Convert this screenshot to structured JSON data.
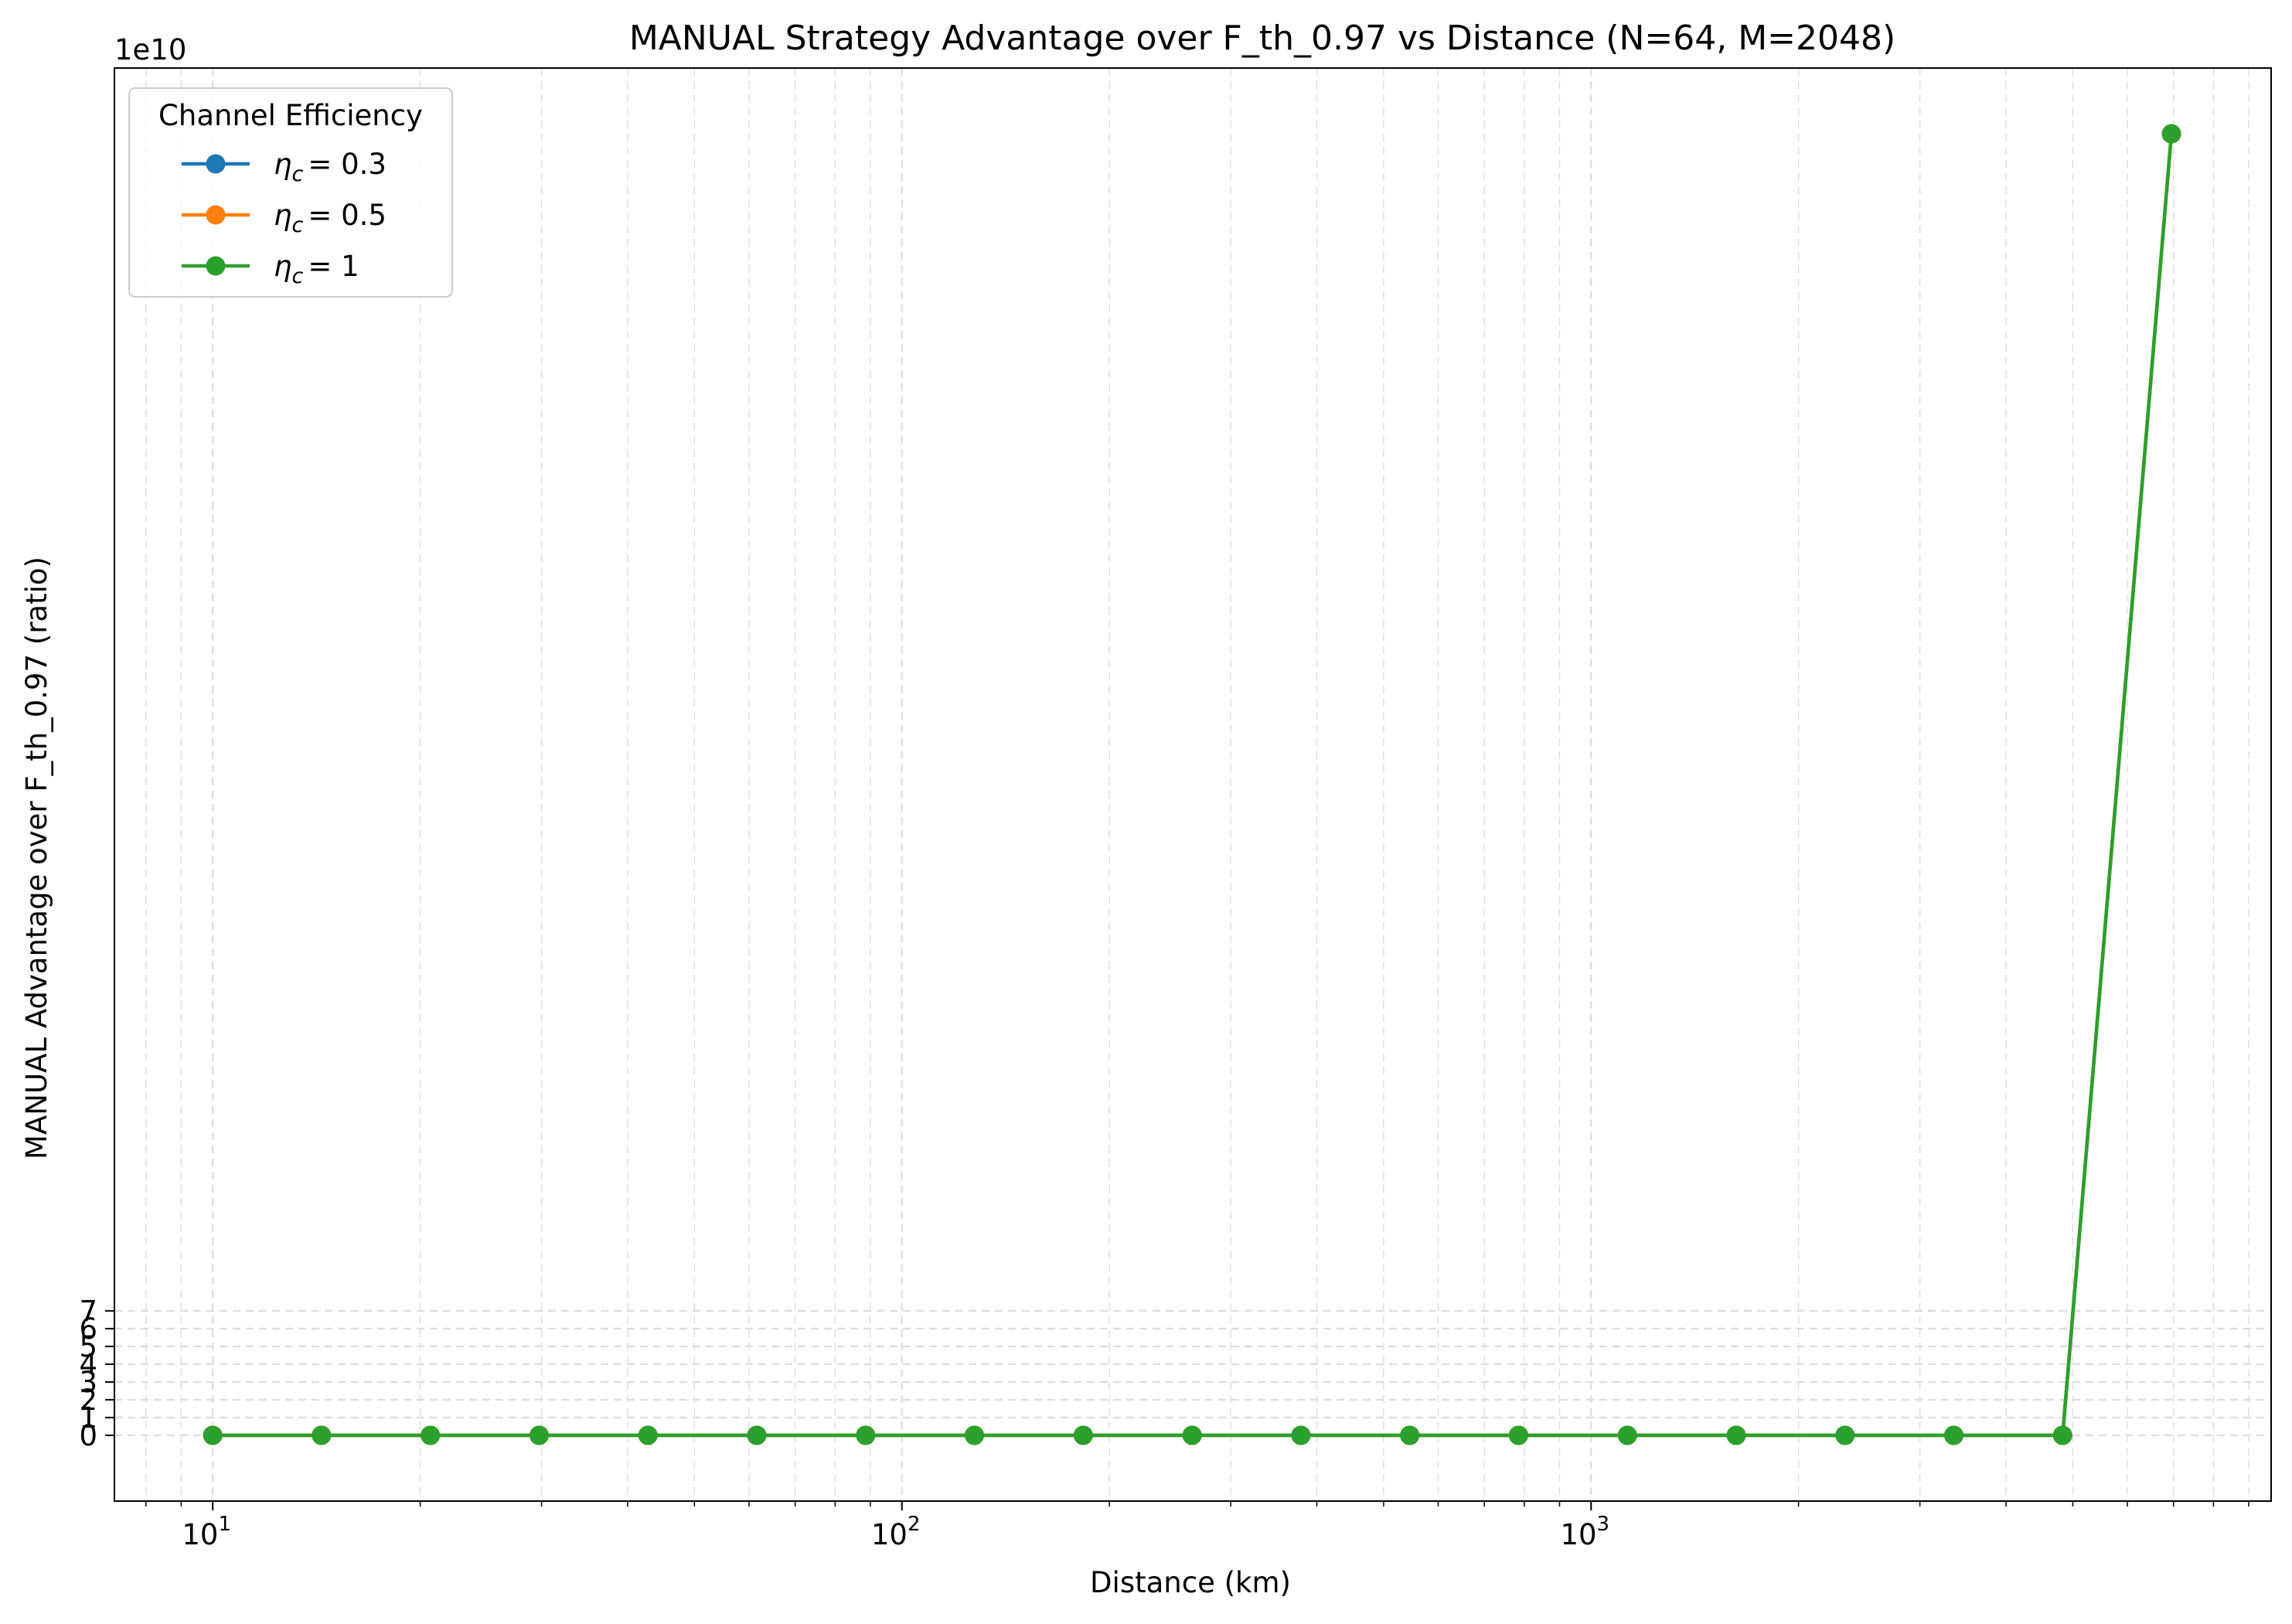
{
  "chart_data": {
    "type": "line",
    "title": "MANUAL Strategy Advantage over F_th_0.97 vs Distance (N=64, M=2048)",
    "xlabel": "Distance (km)",
    "ylabel": "MANUAL Advantage over F_th_0.97 (ratio)",
    "xscale": "log",
    "xlim": [
      7.2,
      9700
    ],
    "ylim": [
      -3.7,
      76.9
    ],
    "y_multiplier_label": "1e10",
    "y_unit_multiplier": 10000000000,
    "grid": true,
    "legend": {
      "title": "Channel Efficiency",
      "placement": "top-left"
    },
    "x_ticks": [
      {
        "value": 10,
        "base": "10",
        "exp": "1"
      },
      {
        "value": 100,
        "base": "10",
        "exp": "2"
      },
      {
        "value": 1000,
        "base": "10",
        "exp": "3"
      }
    ],
    "y_ticks": [
      {
        "value": 0,
        "label": "0"
      },
      {
        "value": 1,
        "label": "1"
      },
      {
        "value": 2,
        "label": "2"
      },
      {
        "value": 3,
        "label": "3"
      },
      {
        "value": 4,
        "label": "4"
      },
      {
        "value": 5,
        "label": "5"
      },
      {
        "value": 6,
        "label": "6"
      },
      {
        "value": 7,
        "label": "7"
      }
    ],
    "x": [
      10,
      14.38,
      20.69,
      29.76,
      42.81,
      61.58,
      88.59,
      127.4,
      183.3,
      263.7,
      379.3,
      545.6,
      784.8,
      1129,
      1624,
      2336,
      3360,
      4833,
      6952
    ],
    "series": [
      {
        "name_sym": "η",
        "name_sub": "c",
        "name_val": "= 0.3",
        "color": "#1f77b4",
        "values": [
          0,
          0,
          0,
          0,
          0,
          0,
          0,
          0,
          0,
          0,
          0,
          0,
          0,
          0,
          0,
          0,
          0,
          0,
          73.2
        ]
      },
      {
        "name_sym": "η",
        "name_sub": "c",
        "name_val": "= 0.5",
        "color": "#ff7f0e",
        "values": [
          0,
          0,
          0,
          0,
          0,
          0,
          0,
          0,
          0,
          0,
          0,
          0,
          0,
          0,
          0,
          0,
          0,
          0,
          73.2
        ]
      },
      {
        "name_sym": "η",
        "name_sub": "c",
        "name_val": "= 1",
        "color": "#2ca02c",
        "values": [
          0,
          0,
          0,
          0,
          0,
          0,
          0,
          0,
          0,
          0,
          0,
          0,
          0,
          0,
          0,
          0,
          0,
          0,
          73.2
        ]
      }
    ]
  }
}
